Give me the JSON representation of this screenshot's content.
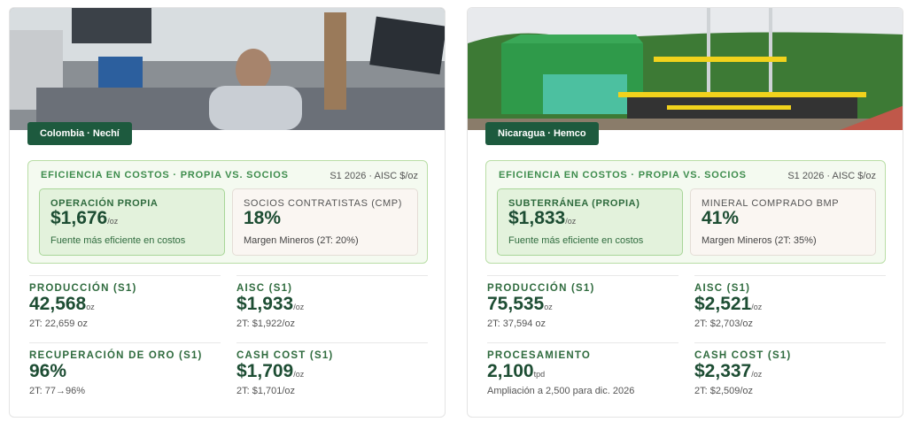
{
  "cards": [
    {
      "location": "Colombia · Nechí",
      "efficiency": {
        "title": "EFICIENCIA EN COSTOS · PROPIA VS. SOCIOS",
        "meta": "S1 2026 · AISC $/oz",
        "left": {
          "label": "OPERACIÓN PROPIA",
          "value": "$1,676",
          "unit": "/oz",
          "note": "Fuente más eficiente en costos"
        },
        "right": {
          "label": "SOCIOS CONTRATISTAS (CMP)",
          "value": "18%",
          "note": "Margen Mineros (2T: 20%)"
        }
      },
      "metrics": [
        {
          "label": "PRODUCCIÓN (S1)",
          "value": "42,568",
          "unit": "oz",
          "sub": "2T: 22,659 oz"
        },
        {
          "label": "AISC (S1)",
          "value": "$1,933",
          "unit": "/oz",
          "sub": "2T: $1,922/oz"
        },
        {
          "label": "RECUPERACIÓN DE ORO (S1)",
          "value": "96%",
          "sub": "2T: 77→96%"
        },
        {
          "label": "CASH COST (S1)",
          "value": "$1,709",
          "unit": "/oz",
          "sub": "2T: $1,701/oz"
        }
      ]
    },
    {
      "location": "Nicaragua · Hemco",
      "efficiency": {
        "title": "EFICIENCIA EN COSTOS · PROPIA VS. SOCIOS",
        "meta": "S1 2026 · AISC $/oz",
        "left": {
          "label": "SUBTERRÁNEA (PROPIA)",
          "value": "$1,833",
          "unit": "/oz",
          "note": "Fuente más eficiente en costos"
        },
        "right": {
          "label": "MINERAL COMPRADO BMP",
          "value": "41%",
          "note": "Margen Mineros (2T: 35%)"
        }
      },
      "metrics": [
        {
          "label": "PRODUCCIÓN (S1)",
          "value": "75,535",
          "unit": "oz",
          "sub": "2T: 37,594 oz"
        },
        {
          "label": "AISC (S1)",
          "value": "$2,521",
          "unit": "/oz",
          "sub": "2T: $2,703/oz"
        },
        {
          "label": "PROCESAMIENTO",
          "value": "2,100",
          "unit": "tpd",
          "sub": "Ampliación a 2,500 para dic. 2026"
        },
        {
          "label": "CASH COST (S1)",
          "value": "$2,337",
          "unit": "/oz",
          "sub": "2T: $2,509/oz"
        }
      ]
    }
  ]
}
